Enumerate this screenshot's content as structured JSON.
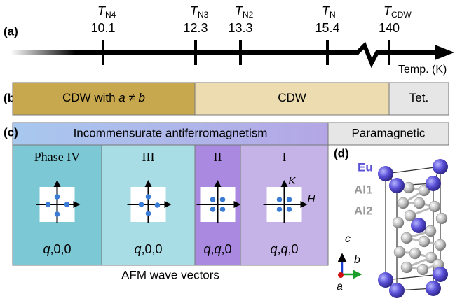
{
  "timeline": {
    "label": "(a)",
    "axis_label": "Temp. (K)",
    "transitions": [
      {
        "symbol": "T",
        "subscript": "N4",
        "value": "10.1"
      },
      {
        "symbol": "T",
        "subscript": "N3",
        "value": "12.3"
      },
      {
        "symbol": "T",
        "subscript": "N2",
        "value": "13.3"
      },
      {
        "symbol": "T",
        "subscript": "N",
        "value": "15.4"
      },
      {
        "symbol": "T",
        "subscript": "CDW",
        "value": "140"
      }
    ]
  },
  "structural": {
    "label": "(b)",
    "bars": [
      {
        "parts": [
          {
            "text": "CDW with ",
            "italic": false
          },
          {
            "text": "a",
            "italic": true
          },
          {
            "text": " ≠ ",
            "italic": false
          },
          {
            "text": "b",
            "italic": true
          }
        ]
      },
      {
        "parts": [
          {
            "text": "CDW",
            "italic": false
          }
        ]
      },
      {
        "parts": [
          {
            "text": "Tet.",
            "italic": false
          }
        ]
      }
    ]
  },
  "magnetic": {
    "label": "(c)",
    "header": "Incommensurate antiferromagnetism",
    "paramagnetic": "Paramagnetic",
    "phases": [
      {
        "name": "Phase IV",
        "vector": [
          {
            "text": "q",
            "italic": true
          },
          {
            "text": ",0,0",
            "italic": false
          }
        ]
      },
      {
        "name": "III",
        "vector": [
          {
            "text": "q",
            "italic": true
          },
          {
            "text": ",0,0",
            "italic": false
          }
        ]
      },
      {
        "name": "II",
        "vector": [
          {
            "text": "q",
            "italic": true
          },
          {
            "text": ",",
            "italic": false
          },
          {
            "text": "q",
            "italic": true
          },
          {
            "text": ",0",
            "italic": false
          }
        ]
      },
      {
        "name": "I",
        "vector": [
          {
            "text": "q",
            "italic": true
          },
          {
            "text": ",",
            "italic": false
          },
          {
            "text": "q",
            "italic": true
          },
          {
            "text": ",0",
            "italic": false
          }
        ]
      }
    ],
    "axis_labels": {
      "k": "K",
      "h": "H"
    },
    "footer": "AFM wave vectors"
  },
  "crystal": {
    "label": "(d)",
    "atoms": [
      "Eu",
      "Al1",
      "Al2"
    ],
    "axes": [
      "c",
      "b",
      "a"
    ]
  }
}
